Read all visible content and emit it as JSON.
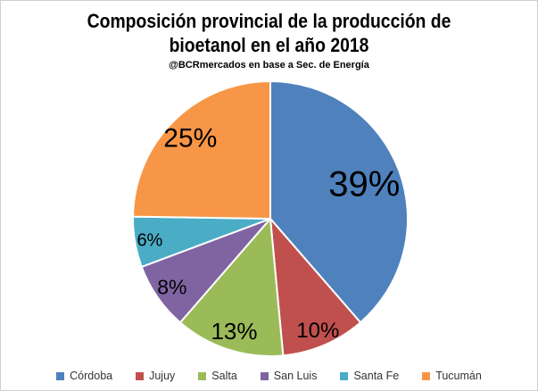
{
  "header": {
    "title_lines": [
      "Composición provincial de la producción de",
      "bioetanol en el año 2018"
    ],
    "subtitle": "@BCRmercados en base a Sec. de Energía"
  },
  "chart_data": {
    "type": "pie",
    "title": "Composición provincial de la producción de bioetanol en el año 2018",
    "subtitle": "@BCRmercados en base a Sec. de Energía",
    "categories": [
      "Córdoba",
      "Jujuy",
      "Salta",
      "San Luis",
      "Santa Fe",
      "Tucumán"
    ],
    "values": [
      39,
      10,
      13,
      8,
      6,
      25
    ],
    "labels": [
      "39%",
      "10%",
      "13%",
      "8%",
      "6%",
      "25%"
    ],
    "colors": [
      "#4F81BD",
      "#C0504D",
      "#9BBB59",
      "#8064A2",
      "#4BACC6",
      "#F79646"
    ],
    "unit": "%",
    "start_angle_deg": 0,
    "direction": "clockwise",
    "slice_border_color": "#FFFFFF",
    "label_color": "#000000",
    "legend_position": "bottom",
    "background": "#FFFFFF"
  }
}
